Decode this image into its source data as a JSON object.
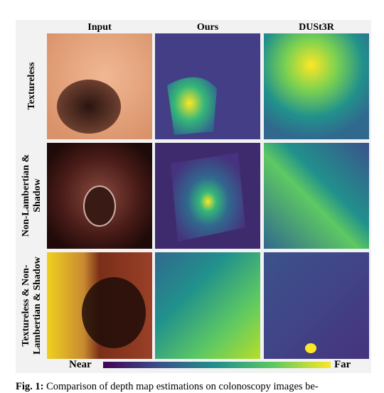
{
  "columns": [
    "Input",
    "Ours",
    "DUSt3R"
  ],
  "rows": [
    {
      "lines": [
        "Textureless"
      ]
    },
    {
      "lines": [
        "Non-Lambertian &",
        "Shadow"
      ]
    },
    {
      "lines": [
        "Textureless & Non-",
        "Lambertian & Shadow"
      ]
    }
  ],
  "colorbar": {
    "low": "Near",
    "high": "Far"
  },
  "caption": {
    "label": "Fig. 1:",
    "text": "Comparison of depth map estimations on colonoscopy images be-"
  }
}
